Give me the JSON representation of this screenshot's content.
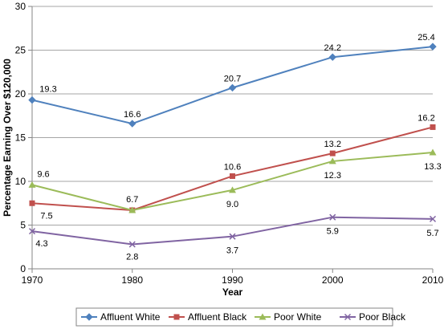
{
  "chart_data": {
    "type": "line",
    "x": [
      1970,
      1980,
      1990,
      2000,
      2010
    ],
    "xlabel": "Year",
    "ylabel": "Percentage Earning Over $120,000",
    "ylim": [
      0,
      30
    ],
    "yticks": [
      0,
      5,
      10,
      15,
      20,
      25,
      30
    ],
    "grid": "horizontal",
    "legend": "bottom",
    "series": [
      {
        "name": "Affluent White",
        "color": "#4F81BD",
        "marker": "diamond",
        "values": [
          19.3,
          16.6,
          20.7,
          24.2,
          25.4
        ],
        "labels": [
          "19.3",
          "16.6",
          "20.7",
          "24.2",
          "25.4"
        ]
      },
      {
        "name": "Affluent Black",
        "color": "#C0504D",
        "marker": "square",
        "values": [
          7.5,
          6.7,
          10.6,
          13.2,
          16.2
        ],
        "labels": [
          "7.5",
          "",
          "10.6",
          "13.2",
          "16.2"
        ]
      },
      {
        "name": "Poor White",
        "color": "#9BBB59",
        "marker": "triangle",
        "values": [
          9.6,
          6.7,
          9.0,
          12.3,
          13.3
        ],
        "labels": [
          "9.6",
          "6.7",
          "9.0",
          "12.3",
          "13.3"
        ]
      },
      {
        "name": "Poor Black",
        "color": "#8064A2",
        "marker": "x",
        "values": [
          4.3,
          2.8,
          3.7,
          5.9,
          5.7
        ],
        "labels": [
          "4.3",
          "2.8",
          "3.7",
          "5.9",
          "5.7"
        ]
      }
    ]
  }
}
